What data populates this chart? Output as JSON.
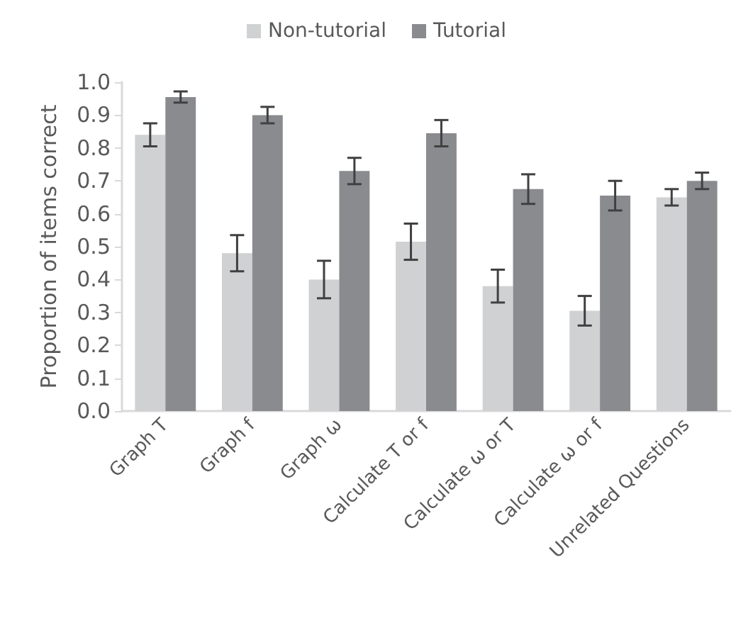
{
  "chart_data": {
    "type": "bar",
    "ylabel": "Proportion of items correct",
    "categories": [
      "Graph T",
      "Graph f",
      "Graph ω",
      "Calculate T or f",
      "Calculate ω or T",
      "Calculate ω or f",
      "Unrelated Questions"
    ],
    "series": [
      {
        "name": "Non-tutorial",
        "color": "#d0d1d3",
        "values": [
          0.84,
          0.48,
          0.4,
          0.515,
          0.38,
          0.305,
          0.65
        ],
        "errors": [
          0.035,
          0.055,
          0.057,
          0.055,
          0.05,
          0.045,
          0.025
        ]
      },
      {
        "name": "Tutorial",
        "color": "#8a8b8f",
        "values": [
          0.955,
          0.9,
          0.73,
          0.845,
          0.675,
          0.655,
          0.7
        ],
        "errors": [
          0.017,
          0.025,
          0.04,
          0.04,
          0.045,
          0.045,
          0.025
        ]
      }
    ],
    "ylim": [
      0,
      1
    ],
    "yticks": [
      {
        "value": 0,
        "label": "0.0"
      },
      0.1,
      0.2,
      0.3,
      0.4,
      0.5,
      0.6,
      0.7,
      0.8,
      0.9,
      {
        "value": 1,
        "label": "1.0"
      }
    ],
    "grid": false,
    "legend": "top"
  }
}
